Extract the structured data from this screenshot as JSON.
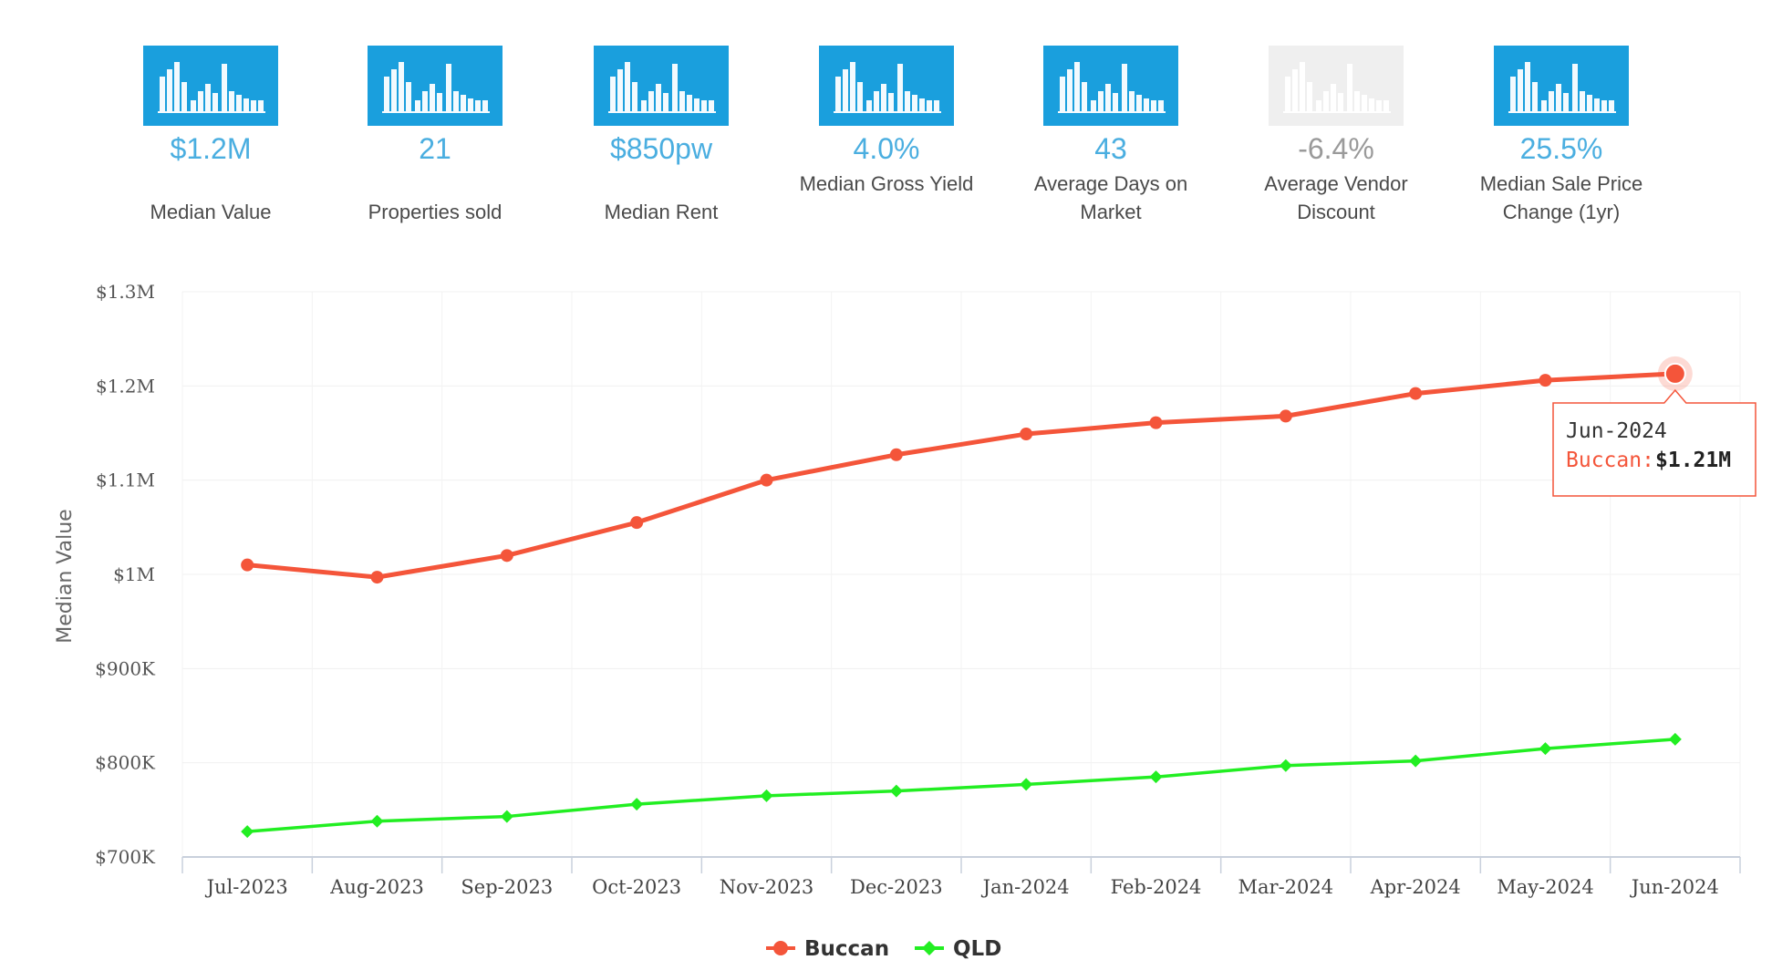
{
  "stats": [
    {
      "value": "$1.2M",
      "label": "Median Value",
      "icon": "bar-chart-icon",
      "color": "#4aaee0",
      "icon_color": "#1a9fdd"
    },
    {
      "value": "21",
      "label": "Properties sold",
      "icon": "bar-chart-icon",
      "color": "#4aaee0",
      "icon_color": "#1a9fdd"
    },
    {
      "value": "$850pw",
      "label": "Median Rent",
      "icon": "bar-chart-icon",
      "color": "#4aaee0",
      "icon_color": "#1a9fdd"
    },
    {
      "value": "4.0%",
      "label": "Median Gross Yield",
      "icon": "bar-chart-icon",
      "color": "#4aaee0",
      "icon_color": "#1a9fdd"
    },
    {
      "value": "43",
      "label": "Average Days on Market",
      "icon": "bar-chart-icon",
      "color": "#4aaee0",
      "icon_color": "#1a9fdd"
    },
    {
      "value": "-6.4%",
      "label": "Average Vendor Discount",
      "icon": "bar-chart-icon",
      "color": "#9a9a9a",
      "icon_color": "#efefef"
    },
    {
      "value": "25.5%",
      "label": "Median Sale Price Change (1yr)",
      "icon": "bar-chart-icon",
      "color": "#4aaee0",
      "icon_color": "#1a9fdd"
    }
  ],
  "chart_data": {
    "type": "line",
    "categories": [
      "Jul-2023",
      "Aug-2023",
      "Sep-2023",
      "Oct-2023",
      "Nov-2023",
      "Dec-2023",
      "Jan-2024",
      "Feb-2024",
      "Mar-2024",
      "Apr-2024",
      "May-2024",
      "Jun-2024"
    ],
    "series": [
      {
        "name": "Buccan",
        "color": "#f4553a",
        "marker": "circle",
        "values": [
          1010000,
          997000,
          1020000,
          1055000,
          1100000,
          1127000,
          1149000,
          1161000,
          1168000,
          1192000,
          1206000,
          1213000
        ]
      },
      {
        "name": "QLD",
        "color": "#22ee22",
        "marker": "diamond",
        "values": [
          727000,
          738000,
          743000,
          756000,
          765000,
          770000,
          777000,
          785000,
          797000,
          802000,
          815000,
          825000
        ]
      }
    ],
    "ylabel": "Median Value",
    "ylim": [
      700000,
      1300000
    ],
    "yticks": [
      {
        "value": 1300000,
        "label": "$1.3M"
      },
      {
        "value": 1200000,
        "label": "$1.2M"
      },
      {
        "value": 1100000,
        "label": "$1.1M"
      },
      {
        "value": 1000000,
        "label": "$1M"
      },
      {
        "value": 900000,
        "label": "$900K"
      },
      {
        "value": 800000,
        "label": "$800K"
      },
      {
        "value": 700000,
        "label": "$700K"
      }
    ],
    "grid": true,
    "legend_position": "bottom-center",
    "tooltip": {
      "category": "Jun-2024",
      "series": "Buccan",
      "series_label": "Buccan:",
      "value_label": "$1.21M"
    }
  }
}
